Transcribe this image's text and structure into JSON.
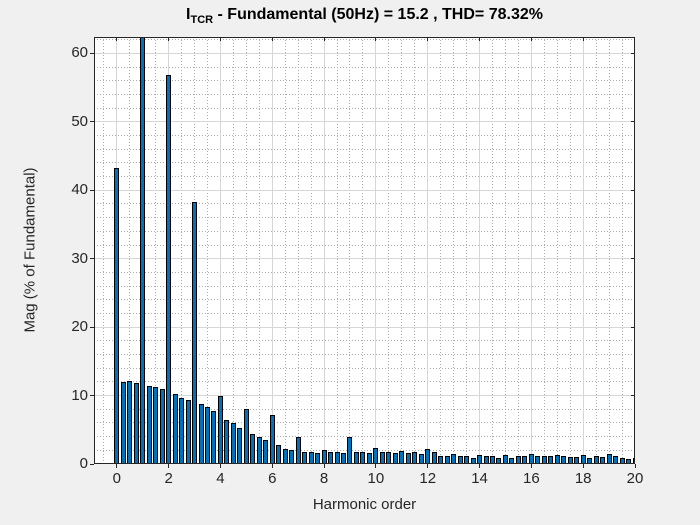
{
  "title": {
    "prefix": "I",
    "subscript": "TCR",
    "rest": " - Fundamental (50Hz) = 15.2 , THD= 78.32%"
  },
  "chart_data": {
    "type": "bar",
    "title": "I_TCR - Fundamental (50Hz) = 15.2 , THD= 78.32%",
    "fundamental_hz": "50",
    "fundamental_value": "15.2",
    "thd_percent": "78.32",
    "xlabel": "Harmonic order",
    "ylabel": "Mag (% of Fundamental)",
    "xlim": [
      -0.88,
      20
    ],
    "ylim": [
      0,
      62.4
    ],
    "x_ticks": [
      0,
      2,
      4,
      6,
      8,
      10,
      12,
      14,
      16,
      18,
      20
    ],
    "y_ticks": [
      0,
      10,
      20,
      30,
      40,
      50,
      60
    ],
    "x_minor_step": 0.5,
    "y_minor_step": 2,
    "grid": true,
    "minor_grid": true,
    "legend": "none",
    "note": "Bar at harmonic 1 (fundamental) is clipped at the top of the axes",
    "x": [
      0,
      0.25,
      0.5,
      0.75,
      1,
      1.25,
      1.5,
      1.75,
      2,
      2.25,
      2.5,
      2.75,
      3,
      3.25,
      3.5,
      3.75,
      4,
      4.25,
      4.5,
      4.75,
      5,
      5.25,
      5.5,
      5.75,
      6,
      6.25,
      6.5,
      6.75,
      7,
      7.25,
      7.5,
      7.75,
      8,
      8.25,
      8.5,
      8.75,
      9,
      9.25,
      9.5,
      9.75,
      10,
      10.25,
      10.5,
      10.75,
      11,
      11.25,
      11.5,
      11.75,
      12,
      12.25,
      12.5,
      12.75,
      13,
      13.25,
      13.5,
      13.75,
      14,
      14.25,
      14.5,
      14.75,
      15,
      15.25,
      15.5,
      15.75,
      16,
      16.25,
      16.5,
      16.75,
      17,
      17.25,
      17.5,
      17.75,
      18,
      18.25,
      18.5,
      18.75,
      19,
      19.25,
      19.5,
      19.75,
      20
    ],
    "values": [
      43.3,
      12.0,
      12.1,
      11.9,
      62.4,
      11.4,
      11.3,
      10.9,
      56.8,
      10.2,
      9.7,
      9.4,
      38.3,
      8.8,
      8.3,
      7.8,
      9.9,
      6.5,
      6.0,
      5.2,
      8.0,
      4.4,
      4.0,
      3.5,
      7.1,
      2.8,
      2.2,
      2.0,
      3.9,
      1.8,
      1.7,
      1.6,
      2.1,
      1.7,
      1.8,
      1.6,
      4.0,
      1.8,
      1.7,
      1.6,
      2.3,
      1.7,
      1.8,
      1.6,
      1.9,
      1.6,
      1.7,
      1.5,
      2.2,
      1.8,
      1.1,
      1.2,
      1.5,
      1.1,
      1.2,
      0.9,
      1.3,
      1.1,
      1.2,
      0.9,
      1.3,
      0.9,
      1.1,
      1.1,
      1.4,
      1.2,
      1.2,
      1.1,
      1.3,
      1.1,
      1.0,
      1.0,
      1.3,
      0.9,
      1.1,
      1.0,
      1.4,
      1.1,
      0.9,
      0.7,
      0.9
    ]
  },
  "colors": {
    "figure_bg": "#f0f0f0",
    "axes_bg": "#ffffff",
    "bar_fill": "#0072bd",
    "bar_edge": "#000000",
    "axis_color": "#262626",
    "major_grid": "#d6d6d6",
    "minor_grid": "#ababab",
    "text": "#262626"
  }
}
